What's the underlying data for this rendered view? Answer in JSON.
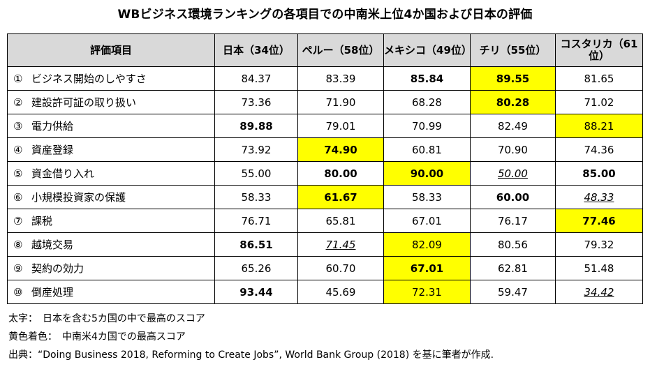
{
  "title": "WBビジネス環境ランキングの各項目での中南米上位4か国および日本の評価",
  "headers": [
    "評価項目",
    "日本（34位）",
    "ペルー（58位）",
    "メキシコ（49位）",
    "チリ（55位）",
    "コスタリカ（61位）"
  ],
  "rows": [
    {
      "no": "①",
      "item": "ビジネス開始のしやすさ",
      "cells": [
        {
          "v": "84.37"
        },
        {
          "v": "83.39"
        },
        {
          "v": "85.84",
          "b": true
        },
        {
          "v": "89.55",
          "b": true,
          "h": true
        },
        {
          "v": "81.65"
        }
      ]
    },
    {
      "no": "②",
      "item": "建設許可証の取り扱い",
      "cells": [
        {
          "v": "73.36"
        },
        {
          "v": "71.90"
        },
        {
          "v": "68.28"
        },
        {
          "v": "80.28",
          "b": true,
          "h": true
        },
        {
          "v": "71.02"
        }
      ]
    },
    {
      "no": "③",
      "item": "電力供給",
      "cells": [
        {
          "v": "89.88",
          "b": true
        },
        {
          "v": "79.01"
        },
        {
          "v": "70.99"
        },
        {
          "v": "82.49"
        },
        {
          "v": "88.21",
          "h": true
        }
      ]
    },
    {
      "no": "④",
      "item": "資産登録",
      "cells": [
        {
          "v": "73.92"
        },
        {
          "v": "74.90",
          "b": true,
          "h": true
        },
        {
          "v": "60.81"
        },
        {
          "v": "70.90"
        },
        {
          "v": "74.36"
        }
      ]
    },
    {
      "no": "⑤",
      "item": "資金借り入れ",
      "cells": [
        {
          "v": "55.00"
        },
        {
          "v": "80.00",
          "b": true
        },
        {
          "v": "90.00",
          "b": true,
          "h": true
        },
        {
          "v": "50.00",
          "u": true
        },
        {
          "v": "85.00",
          "b": true
        }
      ]
    },
    {
      "no": "⑥",
      "item": "小規模投資家の保護",
      "cells": [
        {
          "v": "58.33"
        },
        {
          "v": "61.67",
          "b": true,
          "h": true
        },
        {
          "v": "58.33"
        },
        {
          "v": "60.00",
          "b": true
        },
        {
          "v": "48.33",
          "u": true
        }
      ]
    },
    {
      "no": "⑦",
      "item": "課税",
      "cells": [
        {
          "v": "76.71"
        },
        {
          "v": "65.81"
        },
        {
          "v": "67.01"
        },
        {
          "v": "76.17"
        },
        {
          "v": "77.46",
          "b": true,
          "h": true
        }
      ]
    },
    {
      "no": "⑧",
      "item": "越境交易",
      "cells": [
        {
          "v": "86.51",
          "b": true
        },
        {
          "v": "71.45",
          "u": true
        },
        {
          "v": "82.09",
          "h": true
        },
        {
          "v": "80.56"
        },
        {
          "v": "79.32"
        }
      ]
    },
    {
      "no": "⑨",
      "item": "契約の効力",
      "cells": [
        {
          "v": "65.26"
        },
        {
          "v": "60.70"
        },
        {
          "v": "67.01",
          "b": true,
          "h": true
        },
        {
          "v": "62.81"
        },
        {
          "v": "51.48"
        }
      ]
    },
    {
      "no": "⑩",
      "item": "倒産処理",
      "cells": [
        {
          "v": "93.44",
          "b": true
        },
        {
          "v": "45.69"
        },
        {
          "v": "72.31",
          "h": true
        },
        {
          "v": "59.47"
        },
        {
          "v": "34.42",
          "u": true
        }
      ]
    }
  ],
  "notes": [
    "太字：　日本を含む5カ国の中で最高のスコア",
    "黄色着色：　中南米4カ国での最高スコア",
    "出典：“Doing Business 2018, Reforming to Create Jobs”, World Bank Group (2018) を基に筆者が作成."
  ],
  "colors": {
    "highlight": "#ffff00",
    "header_bg": "#d9d9d9"
  }
}
